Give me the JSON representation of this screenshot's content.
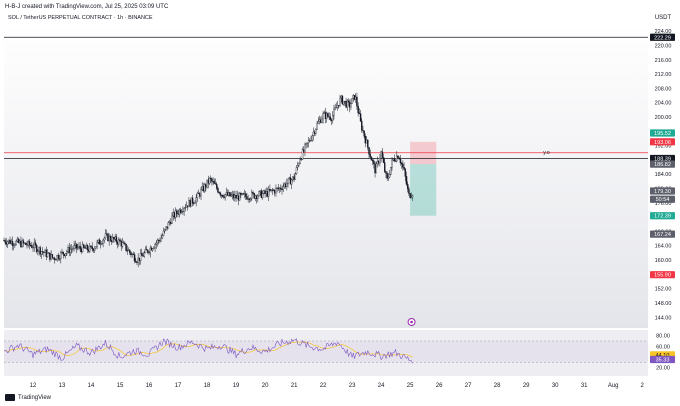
{
  "header": {
    "credit": "H-B-J created with TradingView.com, Jul 25, 2025 03:09 UTC",
    "symbol": "SOL / TetherUS PERPETUAL CONTRACT · 1h · BINANCE"
  },
  "footer": {
    "brand": "TradingView"
  },
  "chart_data": [
    {
      "type": "candlestick",
      "currency": "USDT",
      "ylim": [
        141,
        226
      ],
      "yticks": [
        224,
        220,
        216,
        212,
        208,
        204,
        200,
        196,
        192,
        188,
        184,
        180,
        176,
        172,
        168,
        164,
        160,
        156,
        152,
        148,
        144
      ],
      "xticks": [
        "12",
        "13",
        "14",
        "15",
        "16",
        "17",
        "18",
        "19",
        "20",
        "21",
        "22",
        "23",
        "24",
        "25",
        "26",
        "27",
        "28",
        "29",
        "30",
        "31",
        "Aug",
        "2"
      ],
      "x_day_range": [
        11.0,
        33.2
      ],
      "path_days": [
        11.0,
        12.0,
        12.7,
        13.4,
        14.0,
        14.5,
        15.0,
        15.6,
        16.0,
        16.4,
        16.8,
        17.2,
        17.6,
        18.1,
        18.5,
        19.0,
        19.5,
        20.0,
        20.5,
        21.0,
        21.2,
        21.5,
        21.8,
        22.0,
        22.3,
        22.6,
        22.9,
        23.1,
        23.3,
        23.6,
        23.8,
        24.0,
        24.2,
        24.4,
        24.6,
        24.8,
        24.95,
        25.1
      ],
      "path_close": [
        165.5,
        164.0,
        160.5,
        163.5,
        163.0,
        166.5,
        165.0,
        160.0,
        163.0,
        166.0,
        172.0,
        175.0,
        177.0,
        182.5,
        178.5,
        177.5,
        178.0,
        178.5,
        180.0,
        183.0,
        188.5,
        193.0,
        198.0,
        200.5,
        200.0,
        205.0,
        203.0,
        206.0,
        198.0,
        190.0,
        185.0,
        190.0,
        182.0,
        188.0,
        189.5,
        184.5,
        178.0,
        179.0
      ],
      "horizontal_lines": [
        {
          "price": 222.29,
          "label": "222.29",
          "color": "#131722"
        },
        {
          "price": 188.39,
          "label": "188.39",
          "color": "#131722"
        },
        {
          "price": 190.0,
          "label": "",
          "color": "#f23645"
        }
      ],
      "price_labels": [
        {
          "price": 222.29,
          "text": "222.29",
          "color": "#131722"
        },
        {
          "price": 195.52,
          "text": "195.52",
          "color": "#22ab94"
        },
        {
          "price": 193.06,
          "text": "193.06",
          "color": "#f23645"
        },
        {
          "price": 188.39,
          "text": "188.39",
          "color": "#131722"
        },
        {
          "price": 186.82,
          "text": "186.82",
          "color": "#5d606b"
        },
        {
          "price": 179.3,
          "text": "179.30",
          "color": "#5d606b"
        },
        {
          "price": 177.0,
          "text": "50:54",
          "color": "#5d606b"
        },
        {
          "price": 172.39,
          "text": "172.39",
          "color": "#22ab94"
        },
        {
          "price": 167.24,
          "text": "167.24",
          "color": "#5d606b"
        },
        {
          "price": 155.9,
          "text": "155.90",
          "color": "#f23645"
        }
      ],
      "annotation": {
        "text": "y.o",
        "price": 189.6,
        "day": 29.7
      },
      "position": {
        "entry": 186.82,
        "stop": 193.06,
        "target": 172.39,
        "from_day": 25.0,
        "to_day": 25.9
      },
      "event_marker_day": 25.05
    },
    {
      "type": "line",
      "name": "RSI",
      "ylim": [
        10,
        85
      ],
      "yticks": [
        80,
        60,
        20
      ],
      "band": [
        30,
        70
      ],
      "price_labels": [
        {
          "value": 44.1,
          "text": "44.10",
          "color": "#f7c326"
        },
        {
          "value": 35.33,
          "text": "35.33",
          "color": "#7e57c2"
        }
      ],
      "path_days": [
        11.0,
        11.5,
        12.0,
        12.5,
        13.0,
        13.5,
        14.0,
        14.5,
        15.0,
        15.5,
        16.0,
        16.5,
        17.0,
        17.5,
        18.0,
        18.5,
        19.0,
        19.5,
        20.0,
        20.5,
        21.0,
        21.5,
        22.0,
        22.5,
        23.0,
        23.5,
        24.0,
        24.5,
        25.0,
        25.1
      ],
      "path_values": [
        50,
        62,
        45,
        55,
        38,
        60,
        48,
        66,
        40,
        52,
        45,
        70,
        58,
        68,
        55,
        62,
        45,
        58,
        50,
        65,
        72,
        60,
        55,
        68,
        40,
        50,
        42,
        48,
        34,
        35.33
      ]
    }
  ]
}
